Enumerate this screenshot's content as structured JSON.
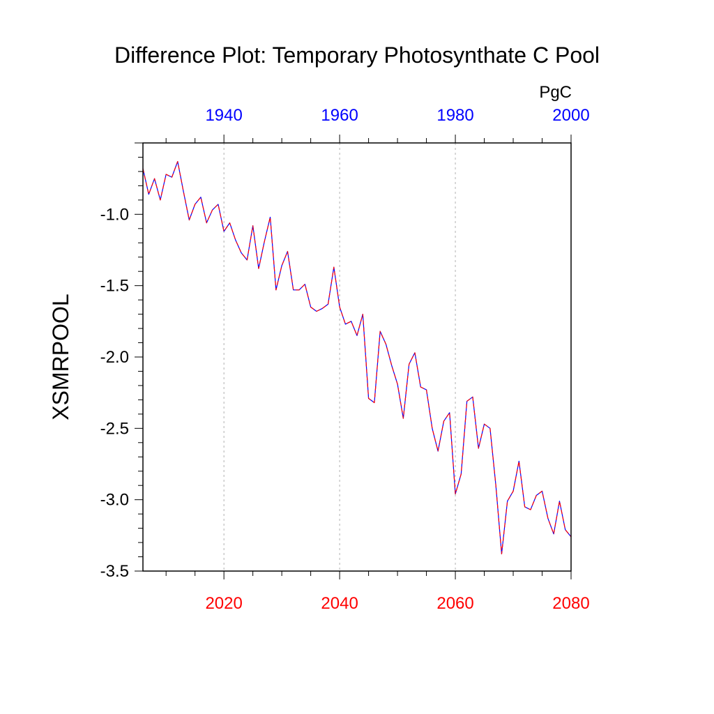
{
  "chart_data": {
    "type": "line",
    "title": "Difference Plot: Temporary Photosynthate C Pool",
    "ylabel": "XSMRPOOL",
    "units": "PgC",
    "bottom_axis": {
      "range": [
        2006,
        2080
      ],
      "ticks": [
        "2020",
        "2040",
        "2060",
        "2080"
      ],
      "tick_values": [
        2020,
        2040,
        2060,
        2080
      ],
      "color": "#ff0000"
    },
    "top_axis": {
      "range": [
        1926,
        2000
      ],
      "ticks": [
        "1940",
        "1960",
        "1980",
        "2000"
      ],
      "tick_values": [
        1940,
        1960,
        1980,
        2000
      ],
      "color": "#0000ff"
    },
    "y_axis": {
      "range": [
        -3.5,
        -0.5
      ],
      "ticks": [
        "-1.0",
        "-1.5",
        "-2.0",
        "-2.5",
        "-3.0",
        "-3.5"
      ],
      "tick_values": [
        -1.0,
        -1.5,
        -2.0,
        -2.5,
        -3.0,
        -3.5
      ]
    },
    "gridlines_x": [
      2020,
      2040,
      2060
    ],
    "series": [
      {
        "color": "#0000ff",
        "dash": "solid",
        "x": [
          2006,
          2007,
          2008,
          2009,
          2010,
          2011,
          2012,
          2013,
          2014,
          2015,
          2016,
          2017,
          2018,
          2019,
          2020,
          2021,
          2022,
          2023,
          2024,
          2025,
          2026,
          2027,
          2028,
          2029,
          2030,
          2031,
          2032,
          2033,
          2034,
          2035,
          2036,
          2037,
          2038,
          2039,
          2040,
          2041,
          2042,
          2043,
          2044,
          2045,
          2046,
          2047,
          2048,
          2049,
          2050,
          2051,
          2052,
          2053,
          2054,
          2055,
          2056,
          2057,
          2058,
          2059,
          2060,
          2061,
          2062,
          2063,
          2064,
          2065,
          2066,
          2067,
          2068,
          2069,
          2070,
          2071,
          2072,
          2073,
          2074,
          2075,
          2076,
          2077,
          2078,
          2079,
          2080
        ],
        "values": [
          -0.68,
          -0.86,
          -0.75,
          -0.9,
          -0.72,
          -0.74,
          -0.63,
          -0.84,
          -1.04,
          -0.93,
          -0.88,
          -1.06,
          -0.97,
          -0.93,
          -1.12,
          -1.06,
          -1.18,
          -1.27,
          -1.32,
          -1.08,
          -1.38,
          -1.19,
          -1.02,
          -1.53,
          -1.36,
          -1.26,
          -1.53,
          -1.53,
          -1.49,
          -1.65,
          -1.68,
          -1.66,
          -1.63,
          -1.37,
          -1.65,
          -1.77,
          -1.75,
          -1.85,
          -1.7,
          -2.29,
          -2.32,
          -1.82,
          -1.91,
          -2.06,
          -2.19,
          -2.43,
          -2.05,
          -1.97,
          -2.21,
          -2.23,
          -2.5,
          -2.66,
          -2.45,
          -2.39,
          -2.96,
          -2.82,
          -2.31,
          -2.28,
          -2.64,
          -2.47,
          -2.5,
          -2.9,
          -3.38,
          -3.01,
          -2.94,
          -2.73,
          -3.05,
          -3.07,
          -2.97,
          -2.94,
          -3.13,
          -3.24,
          -3.01,
          -3.21,
          -3.26
        ]
      },
      {
        "color": "#ff0000",
        "dash": "dashed",
        "x": [
          2006,
          2007,
          2008,
          2009,
          2010,
          2011,
          2012,
          2013,
          2014,
          2015,
          2016,
          2017,
          2018,
          2019,
          2020,
          2021,
          2022,
          2023,
          2024,
          2025,
          2026,
          2027,
          2028,
          2029,
          2030,
          2031,
          2032,
          2033,
          2034,
          2035,
          2036,
          2037,
          2038,
          2039,
          2040,
          2041,
          2042,
          2043,
          2044,
          2045,
          2046,
          2047,
          2048,
          2049,
          2050,
          2051,
          2052,
          2053,
          2054,
          2055,
          2056,
          2057,
          2058,
          2059,
          2060,
          2061,
          2062,
          2063,
          2064,
          2065,
          2066,
          2067,
          2068,
          2069,
          2070,
          2071,
          2072,
          2073,
          2074,
          2075,
          2076,
          2077,
          2078,
          2079,
          2080
        ],
        "values": [
          -0.68,
          -0.86,
          -0.75,
          -0.9,
          -0.72,
          -0.74,
          -0.63,
          -0.84,
          -1.04,
          -0.93,
          -0.88,
          -1.06,
          -0.97,
          -0.93,
          -1.12,
          -1.06,
          -1.18,
          -1.27,
          -1.32,
          -1.08,
          -1.38,
          -1.19,
          -1.02,
          -1.53,
          -1.36,
          -1.26,
          -1.53,
          -1.53,
          -1.49,
          -1.65,
          -1.68,
          -1.66,
          -1.63,
          -1.37,
          -1.65,
          -1.77,
          -1.75,
          -1.85,
          -1.7,
          -2.29,
          -2.32,
          -1.82,
          -1.91,
          -2.06,
          -2.19,
          -2.43,
          -2.05,
          -1.97,
          -2.21,
          -2.23,
          -2.5,
          -2.66,
          -2.45,
          -2.39,
          -2.96,
          -2.82,
          -2.31,
          -2.28,
          -2.64,
          -2.47,
          -2.5,
          -2.9,
          -3.38,
          -3.01,
          -2.94,
          -2.73,
          -3.05,
          -3.07,
          -2.97,
          -2.94,
          -3.13,
          -3.24,
          -3.01,
          -3.21,
          -3.26
        ]
      }
    ]
  }
}
